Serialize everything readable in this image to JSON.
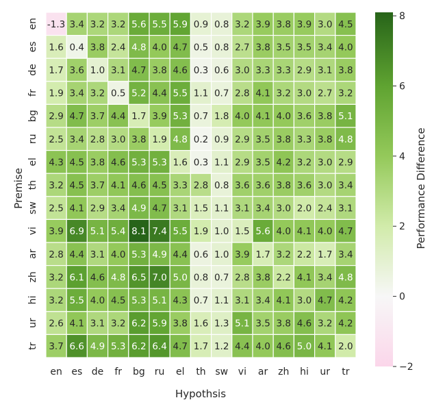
{
  "chart_data": {
    "type": "heatmap",
    "xlabel": "Hypothsis",
    "ylabel": "Premise",
    "colorbar_label": "Performance Difference",
    "x_categories": [
      "en",
      "es",
      "de",
      "fr",
      "bg",
      "ru",
      "el",
      "th",
      "sw",
      "vi",
      "ar",
      "zh",
      "hi",
      "ur",
      "tr"
    ],
    "y_categories": [
      "en",
      "es",
      "de",
      "fr",
      "bg",
      "ru",
      "el",
      "th",
      "sw",
      "vi",
      "ar",
      "zh",
      "hi",
      "ur",
      "tr"
    ],
    "values": [
      [
        -1.3,
        3.4,
        3.2,
        3.2,
        5.6,
        5.5,
        5.9,
        0.9,
        0.8,
        3.2,
        3.9,
        3.8,
        3.9,
        3.0,
        4.5
      ],
      [
        1.6,
        0.4,
        3.8,
        2.4,
        4.8,
        4.0,
        4.7,
        0.5,
        0.8,
        2.7,
        3.8,
        3.5,
        3.5,
        3.4,
        4.0
      ],
      [
        1.7,
        3.6,
        1.0,
        3.1,
        4.7,
        3.8,
        4.6,
        0.3,
        0.6,
        3.0,
        3.3,
        3.3,
        2.9,
        3.1,
        3.8
      ],
      [
        1.9,
        3.4,
        3.2,
        0.5,
        5.2,
        4.4,
        5.5,
        1.1,
        0.7,
        2.8,
        4.1,
        3.2,
        3.0,
        2.7,
        3.2
      ],
      [
        2.9,
        4.7,
        3.7,
        4.4,
        1.7,
        3.9,
        5.3,
        0.7,
        1.8,
        4.0,
        4.1,
        4.0,
        3.6,
        3.8,
        5.1
      ],
      [
        2.5,
        3.4,
        2.8,
        3.0,
        3.8,
        1.9,
        4.8,
        0.2,
        0.9,
        2.9,
        3.5,
        3.8,
        3.3,
        3.8,
        4.8
      ],
      [
        4.3,
        4.5,
        3.8,
        4.6,
        5.3,
        5.3,
        1.6,
        0.3,
        1.1,
        2.9,
        3.5,
        4.2,
        3.2,
        3.0,
        2.9
      ],
      [
        3.2,
        4.5,
        3.7,
        4.1,
        4.6,
        4.5,
        3.3,
        2.8,
        0.8,
        3.6,
        3.6,
        3.8,
        3.6,
        3.0,
        3.4
      ],
      [
        2.5,
        4.1,
        2.9,
        3.4,
        4.9,
        4.7,
        3.1,
        1.5,
        1.1,
        3.1,
        3.4,
        3.0,
        2.0,
        2.4,
        3.1
      ],
      [
        3.9,
        6.9,
        5.1,
        5.4,
        8.1,
        7.4,
        5.5,
        1.9,
        1.0,
        1.5,
        5.6,
        4.0,
        4.1,
        4.0,
        4.7
      ],
      [
        2.8,
        4.4,
        3.1,
        4.0,
        5.3,
        4.9,
        4.4,
        0.6,
        1.0,
        3.9,
        1.7,
        3.2,
        2.2,
        1.7,
        3.4
      ],
      [
        3.2,
        6.1,
        4.6,
        4.8,
        6.5,
        7.0,
        5.0,
        0.8,
        0.7,
        2.8,
        3.8,
        2.2,
        4.1,
        3.4,
        4.8
      ],
      [
        3.2,
        5.5,
        4.0,
        4.5,
        5.3,
        5.1,
        4.3,
        0.7,
        1.1,
        3.1,
        3.4,
        4.1,
        3.0,
        4.7,
        4.2
      ],
      [
        2.6,
        4.1,
        3.1,
        3.2,
        6.2,
        5.9,
        3.8,
        1.6,
        1.3,
        5.1,
        3.5,
        3.8,
        4.6,
        3.2,
        4.2
      ],
      [
        3.7,
        6.6,
        4.9,
        5.3,
        6.2,
        6.4,
        4.7,
        1.7,
        1.2,
        4.4,
        4.0,
        4.6,
        5.0,
        4.1,
        2.0
      ]
    ],
    "vmin": -2,
    "vmax": 8.1,
    "colorbar_ticks": [
      -2,
      0,
      2,
      4,
      6,
      8
    ],
    "colormap": {
      "stops": [
        {
          "value": -2,
          "color": "#fbd6ea"
        },
        {
          "value": 0,
          "color": "#f7f7f7"
        },
        {
          "value": 2,
          "color": "#d1ebaa"
        },
        {
          "value": 4,
          "color": "#94c95a"
        },
        {
          "value": 6,
          "color": "#5fa331"
        },
        {
          "value": 8.1,
          "color": "#276419"
        }
      ]
    },
    "annotation_light_threshold": 4.8,
    "grid": "white cell borders",
    "colorbar_position": "right"
  }
}
